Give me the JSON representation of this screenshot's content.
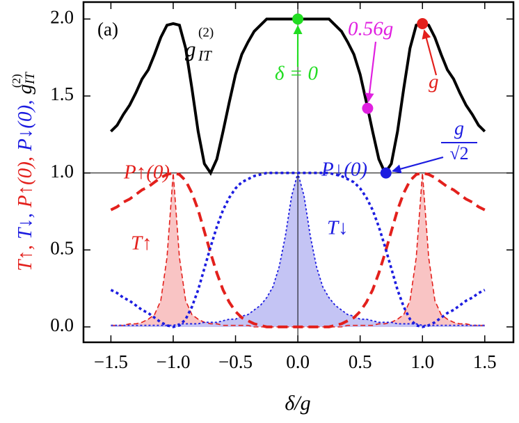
{
  "chart_data": {
    "type": "line",
    "panel_label": "(a)",
    "x_label": "δ/g",
    "y_label_parts": [
      {
        "text": "T↑,",
        "color": "#e3201c"
      },
      {
        "text": "T↓,",
        "color": "#1c1ce0"
      },
      {
        "text": "P↑(0),",
        "color": "#e3201c"
      },
      {
        "text": "P↓(0),",
        "color": "#1c1ce0"
      },
      {
        "text": "g",
        "color": "#000000",
        "sub": "IT",
        "sup": "(2)"
      }
    ],
    "xlim": [
      -1.72,
      1.73
    ],
    "ylim": [
      -0.1,
      2.11
    ],
    "xticks": [
      {
        "value": -1.5,
        "label": "−1.5"
      },
      {
        "value": -1,
        "label": "−1.0"
      },
      {
        "value": -0.5,
        "label": "−0.5"
      },
      {
        "value": 0,
        "label": "0.0"
      },
      0.5,
      {
        "value": 1,
        "label": "1.0"
      },
      1.5
    ],
    "yticks": [
      {
        "value": 0,
        "label": "0.0"
      },
      0.5,
      {
        "value": 1,
        "label": "1.0"
      },
      1.5,
      {
        "value": 2,
        "label": "2.0"
      }
    ],
    "hline": 1,
    "vline": 0,
    "x": [
      -1.5,
      -1.45,
      -1.4,
      -1.35,
      -1.3,
      -1.25,
      -1.2,
      -1.15,
      -1.1,
      -1.05,
      -1,
      -0.95,
      -0.9,
      -0.85,
      -0.8,
      -0.75,
      -0.7,
      -0.65,
      -0.6,
      -0.55,
      -0.5,
      -0.45,
      -0.4,
      -0.35,
      -0.3,
      -0.25,
      -0.2,
      -0.15,
      -0.1,
      -0.05,
      0,
      0.05,
      0.1,
      0.15,
      0.2,
      0.25,
      0.3,
      0.35,
      0.4,
      0.45,
      0.5,
      0.55,
      0.6,
      0.65,
      0.7,
      0.75,
      0.8,
      0.85,
      0.9,
      0.95,
      1,
      1.05,
      1.1,
      1.15,
      1.2,
      1.25,
      1.3,
      1.35,
      1.4,
      1.45,
      1.5
    ],
    "series": [
      {
        "name": "T↑",
        "color": "#e3201c",
        "fill": "#f9c4c4",
        "dash": "thin-dashed",
        "values": [
          0.01,
          0.01,
          0.01,
          0.02,
          0.02,
          0.03,
          0.05,
          0.08,
          0.17,
          0.45,
          1,
          0.45,
          0.17,
          0.08,
          0.05,
          0.03,
          0.02,
          0.02,
          0.01,
          0.01,
          0.01,
          0.01,
          0.01,
          0,
          0,
          0,
          0,
          0,
          0,
          0,
          0,
          0,
          0,
          0,
          0,
          0,
          0,
          0,
          0.01,
          0.01,
          0.01,
          0.01,
          0.01,
          0.02,
          0.02,
          0.03,
          0.05,
          0.08,
          0.17,
          0.45,
          1,
          0.45,
          0.17,
          0.08,
          0.05,
          0.03,
          0.02,
          0.02,
          0.01,
          0.01,
          0.01
        ]
      },
      {
        "name": "T↓",
        "color": "#1c1ce0",
        "fill": "#c4c4f4",
        "dash": "thin-dotted",
        "values": [
          0.01,
          0.01,
          0.01,
          0.01,
          0.01,
          0.01,
          0.01,
          0.01,
          0.01,
          0.01,
          0.01,
          0.02,
          0.02,
          0.02,
          0.02,
          0.03,
          0.03,
          0.03,
          0.04,
          0.05,
          0.05,
          0.07,
          0.08,
          0.11,
          0.14,
          0.19,
          0.26,
          0.39,
          0.59,
          0.85,
          1,
          0.85,
          0.59,
          0.39,
          0.26,
          0.19,
          0.14,
          0.11,
          0.08,
          0.07,
          0.05,
          0.05,
          0.04,
          0.03,
          0.03,
          0.03,
          0.02,
          0.02,
          0.02,
          0.02,
          0.01,
          0.01,
          0.01,
          0.01,
          0.01,
          0.01,
          0.01,
          0.01,
          0.01,
          0.01,
          0.01
        ]
      },
      {
        "name": "P↑(0)",
        "color": "#e3201c",
        "dash": "dashed",
        "values": [
          0.76,
          0.78,
          0.81,
          0.83,
          0.86,
          0.89,
          0.91,
          0.94,
          0.97,
          0.99,
          1,
          0.99,
          0.95,
          0.87,
          0.76,
          0.62,
          0.48,
          0.35,
          0.24,
          0.16,
          0.1,
          0.06,
          0.04,
          0.02,
          0.01,
          0,
          0,
          0,
          0,
          0,
          0,
          0,
          0,
          0,
          0,
          0,
          0.01,
          0.02,
          0.04,
          0.06,
          0.1,
          0.16,
          0.24,
          0.35,
          0.48,
          0.62,
          0.76,
          0.87,
          0.95,
          0.99,
          1,
          0.99,
          0.97,
          0.94,
          0.91,
          0.89,
          0.86,
          0.83,
          0.81,
          0.78,
          0.76
        ]
      },
      {
        "name": "P↓(0)",
        "color": "#1c1ce0",
        "dash": "dotted",
        "values": [
          0.24,
          0.22,
          0.19,
          0.17,
          0.14,
          0.11,
          0.09,
          0.06,
          0.03,
          0.01,
          0,
          0.01,
          0.05,
          0.13,
          0.24,
          0.38,
          0.52,
          0.65,
          0.76,
          0.84,
          0.9,
          0.94,
          0.96,
          0.98,
          0.99,
          1,
          1,
          1,
          1,
          1,
          1,
          1,
          1,
          1,
          1,
          1,
          0.99,
          0.98,
          0.96,
          0.94,
          0.9,
          0.84,
          0.76,
          0.65,
          0.52,
          0.38,
          0.24,
          0.13,
          0.05,
          0.01,
          0,
          0.01,
          0.03,
          0.06,
          0.09,
          0.11,
          0.14,
          0.17,
          0.19,
          0.22,
          0.24
        ]
      },
      {
        "label": {
          "base": "g",
          "sub": "IT",
          "sup": "(2)"
        },
        "color": "#000000",
        "dash": "solid",
        "values": [
          1.27,
          1.31,
          1.38,
          1.44,
          1.52,
          1.61,
          1.67,
          1.77,
          1.88,
          1.96,
          1.97,
          1.96,
          1.81,
          1.55,
          1.27,
          1.06,
          1,
          1.09,
          1.27,
          1.46,
          1.64,
          1.77,
          1.85,
          1.92,
          1.96,
          2,
          2,
          2,
          2,
          2,
          2,
          2,
          2,
          2,
          2,
          2,
          1.96,
          1.92,
          1.85,
          1.77,
          1.64,
          1.46,
          1.27,
          1.09,
          1,
          1.06,
          1.27,
          1.55,
          1.81,
          1.96,
          1.97,
          1.96,
          1.88,
          1.77,
          1.67,
          1.61,
          1.52,
          1.44,
          1.38,
          1.31,
          1.27
        ]
      }
    ],
    "points": [
      {
        "x": 0,
        "y": 2,
        "color": "#22dd22",
        "label": "δ = 0"
      },
      {
        "x": 0.56,
        "y": 1.42,
        "color": "#e020e0",
        "label": "0.56g"
      },
      {
        "x": 0.707,
        "y": 1,
        "color": "#1c1ce0",
        "label": {
          "numerator": "g",
          "denominator": "√2"
        }
      },
      {
        "x": 1,
        "y": 1.97,
        "color": "#e3201c",
        "label": "g"
      }
    ]
  }
}
